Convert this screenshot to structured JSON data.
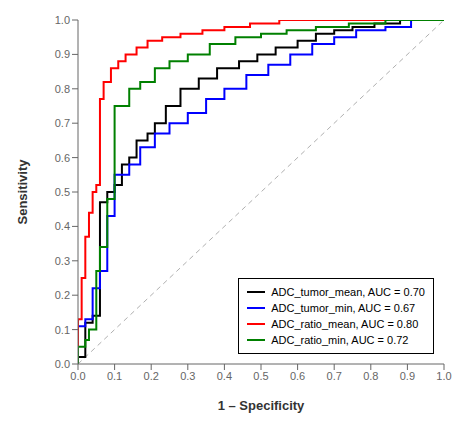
{
  "chart_data": {
    "type": "line",
    "xlabel": "1 – Specificity",
    "ylabel": "Sensitivity",
    "xlim": [
      0.0,
      1.0
    ],
    "ylim": [
      0.0,
      1.0
    ],
    "xticks": [
      {
        "value": 0.0,
        "label": "0.0"
      },
      0.1,
      0.2,
      0.3,
      0.4,
      0.5,
      0.6,
      0.7,
      0.8,
      0.9,
      {
        "value": 1.0,
        "label": "1.0"
      }
    ],
    "yticks": [
      {
        "value": 0.0,
        "label": "0.0"
      },
      0.1,
      0.2,
      0.3,
      0.4,
      0.5,
      0.6,
      0.7,
      0.8,
      0.9,
      {
        "value": 1.0,
        "label": "1.0"
      }
    ],
    "grid": false,
    "legend": "lower right",
    "series": [
      {
        "color": "#b0b0b0",
        "line_style": "dashed",
        "x": [
          0.0,
          1.0
        ],
        "values": [
          0.0,
          1.0
        ]
      },
      {
        "name": "ADC_tumor_mean, AUC = 0.70",
        "color": "#000000",
        "x": [
          0.0,
          0.0,
          0.02,
          0.02,
          0.04,
          0.04,
          0.06,
          0.06,
          0.08,
          0.08,
          0.1,
          0.1,
          0.12,
          0.12,
          0.14,
          0.14,
          0.16,
          0.16,
          0.19,
          0.19,
          0.21,
          0.21,
          0.24,
          0.24,
          0.28,
          0.28,
          0.33,
          0.33,
          0.38,
          0.38,
          0.44,
          0.44,
          0.49,
          0.49,
          0.54,
          0.54,
          0.6,
          0.6,
          0.65,
          0.65,
          0.7,
          0.7,
          0.75,
          0.75,
          0.81,
          0.81,
          0.88,
          0.88,
          1.0,
          1.0
        ],
        "values": [
          0.0,
          0.02,
          0.02,
          0.12,
          0.12,
          0.14,
          0.14,
          0.47,
          0.47,
          0.5,
          0.5,
          0.52,
          0.52,
          0.58,
          0.58,
          0.6,
          0.6,
          0.65,
          0.65,
          0.67,
          0.67,
          0.7,
          0.7,
          0.75,
          0.75,
          0.8,
          0.8,
          0.83,
          0.83,
          0.86,
          0.86,
          0.88,
          0.88,
          0.9,
          0.9,
          0.92,
          0.92,
          0.94,
          0.94,
          0.96,
          0.96,
          0.97,
          0.97,
          0.98,
          0.98,
          0.99,
          0.99,
          1.0,
          1.0,
          1.0
        ]
      },
      {
        "name": "ADC_tumor_min, AUC = 0.67",
        "color": "#0000ff",
        "x": [
          0.0,
          0.0,
          0.02,
          0.02,
          0.04,
          0.04,
          0.06,
          0.06,
          0.08,
          0.08,
          0.1,
          0.1,
          0.14,
          0.14,
          0.17,
          0.17,
          0.21,
          0.21,
          0.25,
          0.25,
          0.3,
          0.3,
          0.35,
          0.35,
          0.4,
          0.4,
          0.46,
          0.46,
          0.52,
          0.52,
          0.58,
          0.58,
          0.64,
          0.64,
          0.7,
          0.7,
          0.76,
          0.76,
          0.84,
          0.84,
          0.91,
          0.91,
          1.0,
          1.0
        ],
        "values": [
          0.0,
          0.11,
          0.11,
          0.13,
          0.13,
          0.22,
          0.22,
          0.27,
          0.27,
          0.43,
          0.43,
          0.55,
          0.55,
          0.58,
          0.58,
          0.63,
          0.63,
          0.67,
          0.67,
          0.7,
          0.7,
          0.73,
          0.73,
          0.77,
          0.77,
          0.8,
          0.8,
          0.84,
          0.84,
          0.87,
          0.87,
          0.9,
          0.9,
          0.93,
          0.93,
          0.95,
          0.95,
          0.97,
          0.97,
          0.98,
          0.98,
          1.0,
          1.0,
          1.0
        ]
      },
      {
        "name": "ADC_ratio_mean, AUC = 0.80",
        "color": "#ff0000",
        "x": [
          0.0,
          0.0,
          0.01,
          0.01,
          0.02,
          0.02,
          0.03,
          0.03,
          0.04,
          0.04,
          0.05,
          0.05,
          0.06,
          0.06,
          0.07,
          0.07,
          0.09,
          0.09,
          0.11,
          0.11,
          0.13,
          0.13,
          0.16,
          0.16,
          0.19,
          0.19,
          0.23,
          0.23,
          0.28,
          0.28,
          0.34,
          0.34,
          0.4,
          0.4,
          0.47,
          0.47,
          0.55,
          0.55,
          0.63,
          0.63,
          0.72,
          0.72,
          0.82,
          0.82,
          1.0,
          1.0
        ],
        "values": [
          0.0,
          0.13,
          0.13,
          0.25,
          0.25,
          0.37,
          0.37,
          0.44,
          0.44,
          0.5,
          0.5,
          0.52,
          0.52,
          0.77,
          0.77,
          0.82,
          0.82,
          0.86,
          0.86,
          0.88,
          0.88,
          0.9,
          0.9,
          0.92,
          0.92,
          0.94,
          0.94,
          0.95,
          0.95,
          0.96,
          0.96,
          0.97,
          0.97,
          0.98,
          0.98,
          0.99,
          0.99,
          1.0,
          1.0,
          1.0,
          1.0,
          1.0,
          1.0,
          1.0,
          1.0,
          1.0
        ]
      },
      {
        "name": "ADC_ratio_min, AUC = 0.72",
        "color": "#008000",
        "x": [
          0.0,
          0.0,
          0.02,
          0.02,
          0.03,
          0.03,
          0.05,
          0.05,
          0.06,
          0.06,
          0.08,
          0.08,
          0.1,
          0.1,
          0.14,
          0.14,
          0.17,
          0.17,
          0.21,
          0.21,
          0.25,
          0.25,
          0.3,
          0.3,
          0.36,
          0.36,
          0.43,
          0.43,
          0.5,
          0.5,
          0.57,
          0.57,
          0.65,
          0.65,
          0.74,
          0.74,
          0.84,
          0.84,
          1.0,
          1.0
        ],
        "values": [
          0.0,
          0.05,
          0.05,
          0.07,
          0.07,
          0.1,
          0.1,
          0.27,
          0.27,
          0.34,
          0.34,
          0.48,
          0.48,
          0.75,
          0.75,
          0.8,
          0.8,
          0.82,
          0.82,
          0.86,
          0.86,
          0.88,
          0.88,
          0.9,
          0.9,
          0.93,
          0.93,
          0.95,
          0.95,
          0.96,
          0.96,
          0.97,
          0.97,
          0.98,
          0.98,
          0.99,
          0.99,
          1.0,
          1.0,
          1.0
        ]
      }
    ]
  }
}
